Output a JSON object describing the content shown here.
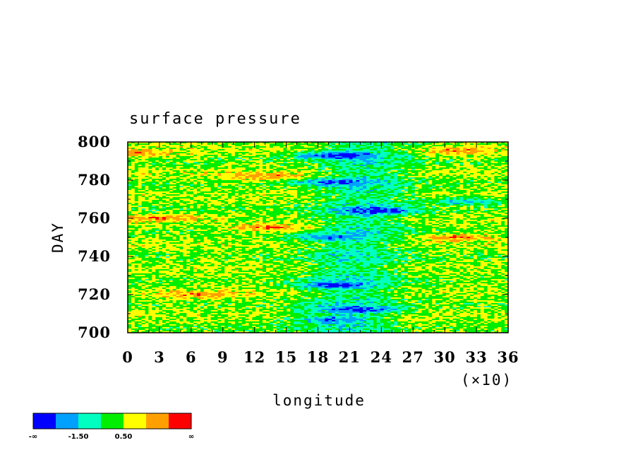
{
  "chart_data": {
    "type": "heatmap",
    "title": "surface pressure",
    "xlabel": "longitude",
    "ylabel": "DAY",
    "x_multiplier_label": "(×10)",
    "xlim": [
      0,
      36
    ],
    "ylim": [
      700,
      800
    ],
    "x_ticks": [
      "0",
      "3",
      "6",
      "9",
      "12",
      "15",
      "18",
      "21",
      "24",
      "27",
      "30",
      "33",
      "36"
    ],
    "y_ticks": [
      "700",
      "720",
      "740",
      "760",
      "780",
      "800"
    ],
    "colorbar": {
      "colors": [
        "#0000ff",
        "#00a0ff",
        "#00ffc0",
        "#00ee00",
        "#ffff00",
        "#ffa000",
        "#ff0000"
      ],
      "labels": [
        "-∞",
        "-1.50",
        "0.50",
        "∞"
      ]
    },
    "features": [
      {
        "lon": 19.5,
        "day": 793,
        "value": -3.0
      },
      {
        "lon": 19.0,
        "day": 779,
        "value": -2.2
      },
      {
        "lon": 24.0,
        "day": 764,
        "value": -2.4
      },
      {
        "lon": 32.0,
        "day": 769,
        "value": -2.0
      },
      {
        "lon": 19.0,
        "day": 750,
        "value": -1.8
      },
      {
        "lon": 19.5,
        "day": 725,
        "value": -2.0
      },
      {
        "lon": 22.0,
        "day": 712,
        "value": -2.2
      },
      {
        "lon": 19.0,
        "day": 707,
        "value": -1.8
      },
      {
        "lon": 1.0,
        "day": 794,
        "value": 1.7
      },
      {
        "lon": 13.0,
        "day": 782,
        "value": 1.5
      },
      {
        "lon": 14.0,
        "day": 755,
        "value": 2.0
      },
      {
        "lon": 31.0,
        "day": 750,
        "value": 1.8
      },
      {
        "lon": 7.0,
        "day": 720,
        "value": 1.5
      },
      {
        "lon": 31.0,
        "day": 795,
        "value": 1.6
      },
      {
        "lon": 3.0,
        "day": 760,
        "value": 1.4
      }
    ]
  }
}
